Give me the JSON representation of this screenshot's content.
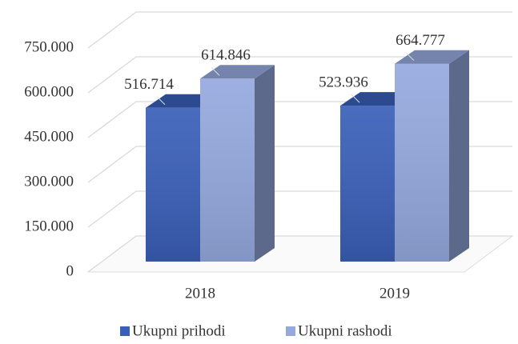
{
  "chart_data": {
    "type": "bar3d",
    "categories": [
      "2018",
      "2019"
    ],
    "series": [
      {
        "name": "Ukupni prihodi",
        "color": "#3a5fb8",
        "values": [
          516714,
          523936
        ],
        "value_labels": [
          "516.714",
          "523.936"
        ]
      },
      {
        "name": "Ukupni rashodi",
        "color": "#95a9de",
        "values": [
          614846,
          664777
        ],
        "value_labels": [
          "614.846",
          "664.777"
        ]
      }
    ],
    "ylim": [
      0,
      750000
    ],
    "yticks": [
      0,
      {
        "value": 150000,
        "label": "150.000"
      },
      {
        "value": 300000,
        "label": "300.000"
      },
      {
        "value": 450000,
        "label": "450.000"
      },
      {
        "value": 600000,
        "label": "600.000"
      },
      {
        "value": 750000,
        "label": "750.000"
      }
    ],
    "grid": true,
    "legend": "bottom"
  }
}
